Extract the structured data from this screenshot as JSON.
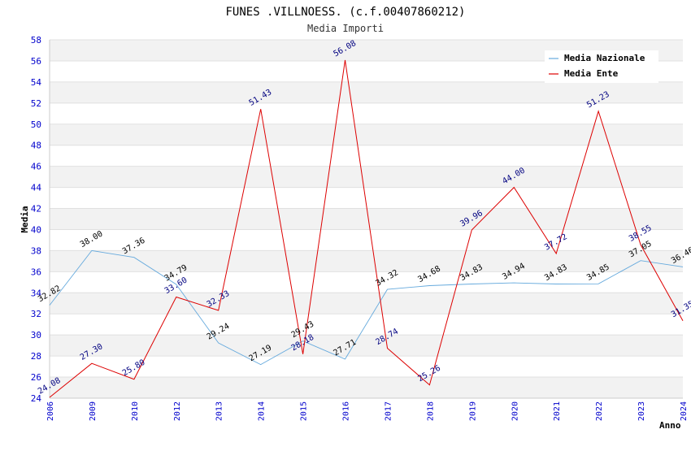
{
  "chart_data": {
    "type": "line",
    "title": "FUNES .VILLNOESS. (c.f.00407860212)",
    "subtitle": "Media Importi",
    "xlabel": "Anno",
    "ylabel": "Media",
    "ylim": [
      24,
      58
    ],
    "y_ticks": [
      "24",
      "26",
      "28",
      "30",
      "32",
      "34",
      "36",
      "38",
      "40",
      "42",
      "44",
      "46",
      "48",
      "50",
      "52",
      "54",
      "56",
      "58"
    ],
    "categories": [
      "2006",
      "2009",
      "2010",
      "2012",
      "2013",
      "2014",
      "2015",
      "2016",
      "2017",
      "2018",
      "2019",
      "2020",
      "2021",
      "2022",
      "2023",
      "2024"
    ],
    "series": [
      {
        "name": "Media Nazionale",
        "color": "#66aadd",
        "values": [
          32.82,
          38.0,
          37.36,
          34.79,
          29.24,
          27.19,
          29.43,
          27.71,
          34.32,
          34.68,
          34.83,
          34.94,
          34.83,
          34.85,
          37.05,
          36.46
        ],
        "labels": [
          "32.82",
          "38.00",
          "37.36",
          "34.79",
          "29.24",
          "27.19",
          "29.43",
          "27.71",
          "34.32",
          "34.68",
          "34.83",
          "34.94",
          "34.83",
          "34.85",
          "37.05",
          "36.46"
        ]
      },
      {
        "name": "Media Ente",
        "color": "#dd0000",
        "values": [
          24.08,
          27.3,
          25.8,
          33.6,
          32.33,
          51.43,
          28.18,
          56.08,
          28.74,
          25.26,
          39.96,
          44.0,
          37.72,
          51.23,
          38.55,
          31.35
        ],
        "labels": [
          "24.08",
          "27.30",
          "25.80",
          "33.60",
          "32.33",
          "51.43",
          "28.18",
          "56.08",
          "28.74",
          "25.26",
          "39.96",
          "44.00",
          "37.72",
          "51.23",
          "38.55",
          "31.35"
        ]
      }
    ],
    "legend": {
      "position": "top-right"
    },
    "grid": true,
    "band_colors": [
      "#f2f2f2",
      "#ffffff"
    ]
  }
}
